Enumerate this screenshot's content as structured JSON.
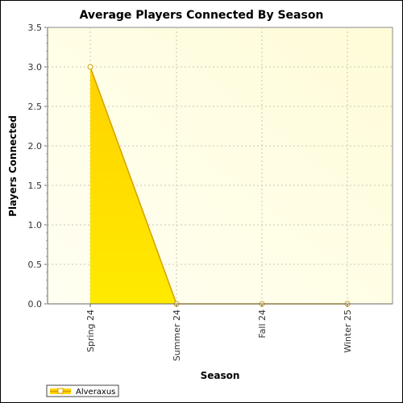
{
  "chart_data": {
    "type": "area",
    "title": "Average Players Connected By Season",
    "xlabel": "Season",
    "ylabel": "Players Connected",
    "categories": [
      "Spring 24",
      "Summer 24",
      "Fall 24",
      "Winter 25"
    ],
    "series": [
      {
        "name": "Alveraxus",
        "values": [
          3.0,
          0.0,
          0.0,
          0.0
        ]
      }
    ],
    "ylim": [
      0,
      3.5
    ],
    "yticks": [
      "0.0",
      "0.5",
      "1.0",
      "1.5",
      "2.0",
      "2.5",
      "3.0",
      "3.5"
    ],
    "grid": true,
    "legend_position": "bottom-left",
    "colors": {
      "fill": "#ffd400",
      "line": "#d4a000",
      "marker_fill": "#ffffff",
      "plot_background_light": "#fffff0",
      "plot_background_dark": "#fffcd6",
      "grid": "#c8c8b4"
    }
  }
}
